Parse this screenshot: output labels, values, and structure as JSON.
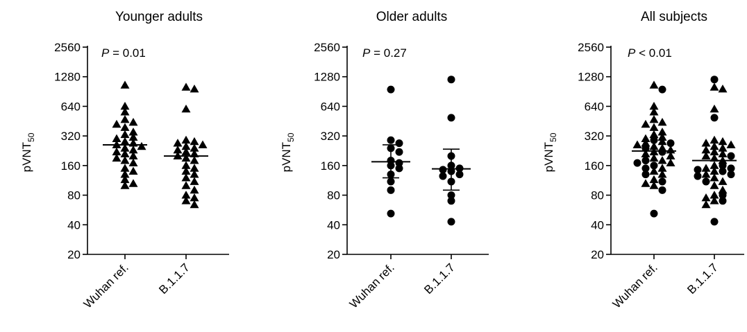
{
  "chart_data": [
    {
      "type": "scatter",
      "title": "Younger adults",
      "ylabel": "pVNT",
      "ylabel_subscript": "50",
      "yscale": "log2",
      "ylim": [
        20,
        2560
      ],
      "yticks": [
        20,
        40,
        80,
        160,
        320,
        640,
        1280,
        2560
      ],
      "categories": [
        "Wuhan ref.",
        "B.1.1.7"
      ],
      "annotation": {
        "symbol": "P",
        "relation": "=",
        "value": "0.01"
      },
      "series": [
        {
          "category": "Wuhan ref.",
          "marker": "triangle",
          "values": [
            1050,
            640,
            560,
            470,
            440,
            420,
            390,
            350,
            330,
            310,
            300,
            280,
            270,
            260,
            250,
            240,
            230,
            220,
            210,
            200,
            190,
            180,
            170,
            150,
            140,
            130,
            115,
            105,
            100
          ],
          "center": 260
        },
        {
          "category": "B.1.1.7",
          "marker": "triangle",
          "values": [
            1000,
            960,
            600,
            290,
            280,
            270,
            260,
            250,
            240,
            230,
            220,
            210,
            200,
            190,
            180,
            160,
            150,
            140,
            130,
            120,
            110,
            100,
            90,
            80,
            75,
            70,
            64
          ],
          "center": 200
        }
      ]
    },
    {
      "type": "scatter",
      "title": "Older adults",
      "ylabel": "pVNT",
      "ylabel_subscript": "50",
      "yscale": "log2",
      "ylim": [
        20,
        2560
      ],
      "yticks": [
        20,
        40,
        80,
        160,
        320,
        640,
        1280,
        2560
      ],
      "categories": [
        "Wuhan ref.",
        "B.1.1.7"
      ],
      "annotation": {
        "symbol": "P",
        "relation": "=",
        "value": "0.27"
      },
      "series": [
        {
          "category": "Wuhan ref.",
          "marker": "circle",
          "values": [
            950,
            290,
            270,
            240,
            220,
            180,
            170,
            160,
            150,
            130,
            110,
            90,
            52
          ],
          "center": 175,
          "error": [
            120,
            260
          ]
        },
        {
          "category": "B.1.1.7",
          "marker": "circle",
          "values": [
            1200,
            490,
            200,
            160,
            150,
            145,
            140,
            130,
            125,
            110,
            80,
            70,
            43
          ],
          "center": 148,
          "error": [
            90,
            235
          ]
        }
      ]
    },
    {
      "type": "scatter",
      "title": "All subjects",
      "ylabel": "pVNT",
      "ylabel_subscript": "50",
      "yscale": "log2",
      "ylim": [
        20,
        2560
      ],
      "yticks": [
        20,
        40,
        80,
        160,
        320,
        640,
        1280,
        2560
      ],
      "categories": [
        "Wuhan ref.",
        "B.1.1.7"
      ],
      "annotation": {
        "symbol": "P",
        "relation": "<",
        "value": "0.01"
      },
      "series": [
        {
          "category": "Wuhan ref.",
          "marker": "mixed",
          "triangles": [
            1050,
            640,
            560,
            470,
            440,
            420,
            390,
            350,
            330,
            310,
            300,
            280,
            270,
            260,
            250,
            240,
            230,
            220,
            210,
            200,
            190,
            180,
            170,
            150,
            140,
            130,
            115,
            105,
            100
          ],
          "circles": [
            950,
            290,
            270,
            240,
            220,
            180,
            170,
            160,
            150,
            130,
            110,
            90,
            52
          ],
          "center": 225
        },
        {
          "category": "B.1.1.7",
          "marker": "mixed",
          "triangles": [
            1000,
            960,
            600,
            290,
            280,
            270,
            260,
            250,
            240,
            230,
            220,
            210,
            200,
            190,
            180,
            160,
            150,
            140,
            130,
            120,
            110,
            100,
            90,
            80,
            75,
            70,
            64
          ],
          "circles": [
            1200,
            490,
            200,
            160,
            150,
            145,
            140,
            130,
            125,
            110,
            80,
            70,
            43
          ],
          "center": 180
        }
      ]
    }
  ]
}
